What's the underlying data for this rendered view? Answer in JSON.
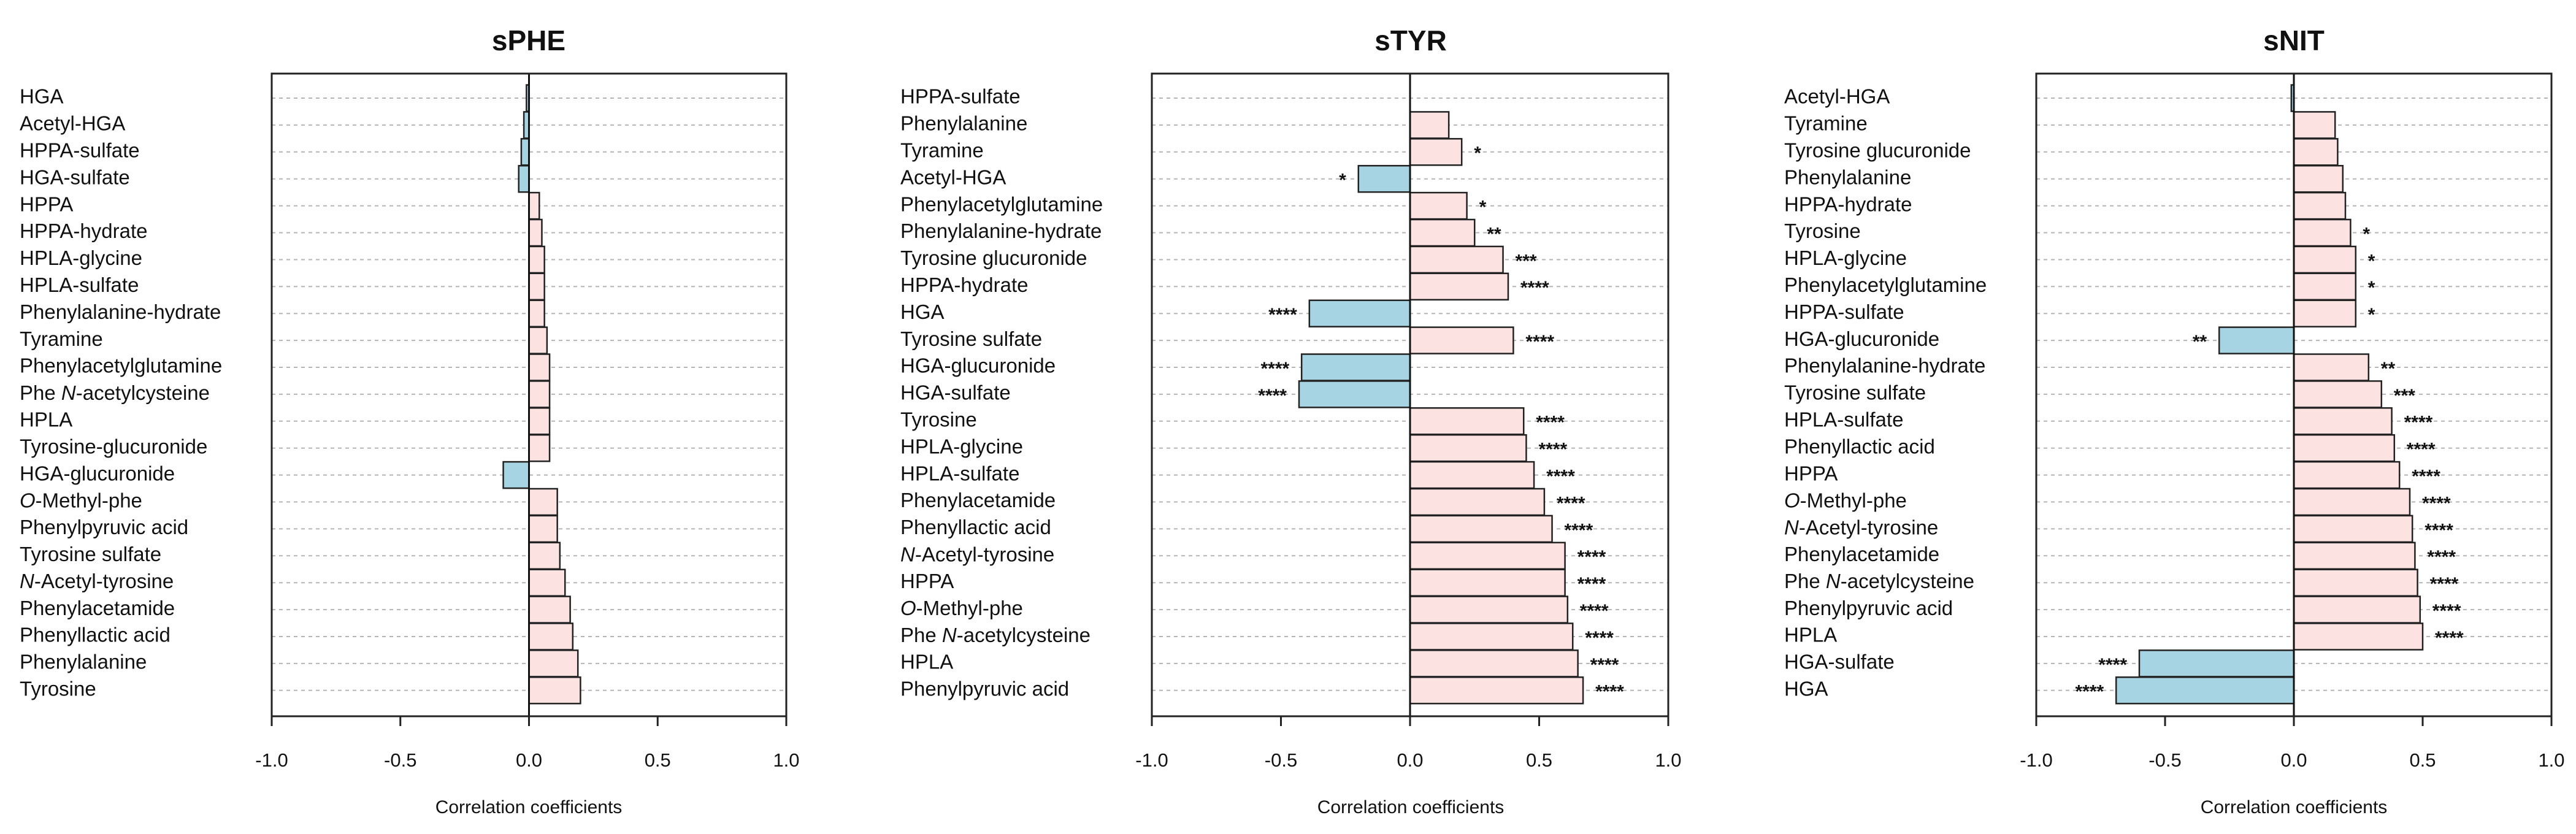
{
  "chart_data": [
    {
      "type": "bar",
      "orientation": "horizontal",
      "title": "sPHE",
      "xlabel": "Correlation coefficients",
      "ylabel": "",
      "xlim": [
        -1.0,
        1.0
      ],
      "xticks": [
        "-1.0",
        "-0.5",
        "0.0",
        "0.5",
        "1.0"
      ],
      "grid": "horizontal dashed",
      "positive_color": "#fde2e2",
      "negative_color": "#a7d4e2",
      "categories": [
        "HGA",
        "Acetyl-HGA",
        "HPPA-sulfate",
        "HGA-sulfate",
        "HPPA",
        "HPPA-hydrate",
        "HPLA-glycine",
        "HPLA-sulfate",
        "Phenylalanine-hydrate",
        "Tyramine",
        "Phenylacetylglutamine",
        "Phe N-acetylcysteine",
        "HPLA",
        "Tyrosine-glucuronide",
        "HGA-glucuronide",
        "O-Methyl-phe",
        "Phenylpyruvic acid",
        "Tyrosine sulfate",
        "N-Acetyl-tyrosine",
        "Phenylacetamide",
        "Phenyllactic acid",
        "Phenylalanine",
        "Tyrosine"
      ],
      "values": [
        -0.01,
        -0.02,
        -0.03,
        -0.04,
        0.04,
        0.05,
        0.06,
        0.06,
        0.06,
        0.07,
        0.08,
        0.08,
        0.08,
        0.08,
        -0.1,
        0.11,
        0.11,
        0.12,
        0.14,
        0.16,
        0.17,
        0.19,
        0.2
      ],
      "significance": [
        "",
        "",
        "",
        "",
        "",
        "",
        "",
        "",
        "",
        "",
        "",
        "",
        "",
        "",
        "",
        "",
        "",
        "",
        "",
        "",
        "",
        "",
        ""
      ]
    },
    {
      "type": "bar",
      "orientation": "horizontal",
      "title": "sTYR",
      "xlabel": "Correlation coefficients",
      "ylabel": "",
      "xlim": [
        -1.0,
        1.0
      ],
      "xticks": [
        "-1.0",
        "-0.5",
        "0.0",
        "0.5",
        "1.0"
      ],
      "grid": "horizontal dashed",
      "positive_color": "#fde2e2",
      "negative_color": "#a7d4e2",
      "categories": [
        "HPPA-sulfate",
        "Phenylalanine",
        "Tyramine",
        "Acetyl-HGA",
        "Phenylacetylglutamine",
        "Phenylalanine-hydrate",
        "Tyrosine glucuronide",
        "HPPA-hydrate",
        "HGA",
        "Tyrosine sulfate",
        "HGA-glucuronide",
        "HGA-sulfate",
        "Tyrosine",
        "HPLA-glycine",
        "HPLA-sulfate",
        "Phenylacetamide",
        "Phenyllactic acid",
        "N-Acetyl-tyrosine",
        "HPPA",
        "O-Methyl-phe",
        "Phe N-acetylcysteine",
        "HPLA",
        "Phenylpyruvic acid"
      ],
      "values": [
        0.0,
        0.15,
        0.2,
        -0.2,
        0.22,
        0.25,
        0.36,
        0.38,
        -0.39,
        0.4,
        -0.42,
        -0.43,
        0.44,
        0.45,
        0.48,
        0.52,
        0.55,
        0.6,
        0.6,
        0.61,
        0.63,
        0.65,
        0.67
      ],
      "significance": [
        "",
        "",
        "*",
        "*",
        "*",
        "**",
        "***",
        "****",
        "****",
        "****",
        "****",
        "****",
        "****",
        "****",
        "****",
        "****",
        "****",
        "****",
        "****",
        "****",
        "****",
        "****",
        "****"
      ]
    },
    {
      "type": "bar",
      "orientation": "horizontal",
      "title": "sNIT",
      "xlabel": "Correlation coefficients",
      "ylabel": "",
      "xlim": [
        -1.0,
        1.0
      ],
      "xticks": [
        "-1.0",
        "-0.5",
        "0.0",
        "0.5",
        "1.0"
      ],
      "grid": "horizontal dashed",
      "positive_color": "#fde2e2",
      "negative_color": "#a7d4e2",
      "categories": [
        "Acetyl-HGA",
        "Tyramine",
        "Tyrosine glucuronide",
        "Phenylalanine",
        "HPPA-hydrate",
        "Tyrosine",
        "HPLA-glycine",
        "Phenylacetylglutamine",
        "HPPA-sulfate",
        "HGA-glucuronide",
        "Phenylalanine-hydrate",
        "Tyrosine sulfate",
        "HPLA-sulfate",
        "Phenyllactic acid",
        "HPPA",
        "O-Methyl-phe",
        "N-Acetyl-tyrosine",
        "Phenylacetamide",
        "Phe N-acetylcysteine",
        "Phenylpyruvic acid",
        "HPLA",
        "HGA-sulfate",
        "HGA"
      ],
      "values": [
        -0.01,
        0.16,
        0.17,
        0.19,
        0.2,
        0.22,
        0.24,
        0.24,
        0.24,
        -0.29,
        0.29,
        0.34,
        0.38,
        0.39,
        0.41,
        0.45,
        0.46,
        0.47,
        0.48,
        0.49,
        0.5,
        -0.6,
        -0.69
      ],
      "significance": [
        "",
        "",
        "",
        "",
        "",
        "*",
        "*",
        "*",
        "*",
        "**",
        "**",
        "***",
        "****",
        "****",
        "****",
        "****",
        "****",
        "****",
        "****",
        "****",
        "****",
        "****",
        "****"
      ]
    }
  ]
}
